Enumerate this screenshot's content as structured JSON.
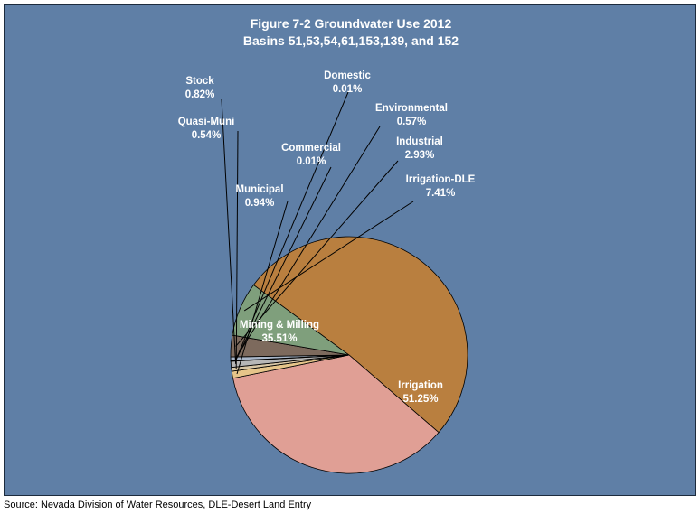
{
  "chart_data": {
    "type": "pie",
    "title": "Figure 7-2 Groundwater Use 2012",
    "subtitle": "Basins 51,53,54,61,153,139, and 152",
    "slices": [
      {
        "name": "Domestic",
        "pct_label": "0.01%",
        "value": 0.01,
        "color": "#9aa3b4"
      },
      {
        "name": "Environmental",
        "pct_label": "0.57%",
        "value": 0.57,
        "color": "#a9b6c8"
      },
      {
        "name": "Industrial",
        "pct_label": "2.93%",
        "value": 2.93,
        "color": "#7d6a5d"
      },
      {
        "name": "Irrigation-DLE",
        "pct_label": "7.41%",
        "value": 7.41,
        "color": "#7f9f7c"
      },
      {
        "name": "Irrigation",
        "pct_label": "51.25%",
        "value": 51.25,
        "color": "#b97f3f"
      },
      {
        "name": "Mining & Milling",
        "pct_label": "35.51%",
        "value": 35.51,
        "color": "#e09f95"
      },
      {
        "name": "Municipal",
        "pct_label": "0.94%",
        "value": 0.94,
        "color": "#e6c58a"
      },
      {
        "name": "Quasi-Muni",
        "pct_label": "0.54%",
        "value": 0.54,
        "color": "#d9c7a6"
      },
      {
        "name": "Stock",
        "pct_label": "0.82%",
        "value": 0.82,
        "color": "#b7b7b7"
      },
      {
        "name": "Commercial",
        "pct_label": "0.01%",
        "value": 0.01,
        "color": "#c8c8c8"
      }
    ]
  },
  "colors": {
    "background": "#5F7FA6",
    "label_text": "#ffffff",
    "leader_line": "#000000"
  },
  "footer": {
    "source": "Source: Nevada Division of Water Resources, DLE-Desert Land Entry"
  }
}
